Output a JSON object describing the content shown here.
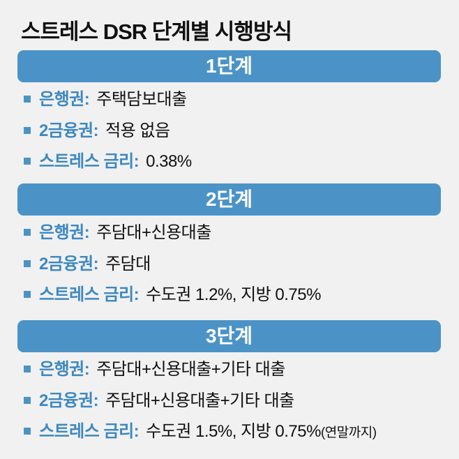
{
  "title": "스트레스 DSR 단계별 시행방식",
  "sections": [
    {
      "header": "1단계",
      "items": [
        {
          "label": "은행권:",
          "text": "주택담보대출"
        },
        {
          "label": "2금융권:",
          "text": "적용 없음"
        },
        {
          "label": "스트레스 금리:",
          "text": "0.38%"
        }
      ]
    },
    {
      "header": "2단계",
      "items": [
        {
          "label": "은행권:",
          "text": "주담대+신용대출"
        },
        {
          "label": "2금융권:",
          "text": "주담대"
        },
        {
          "label": "스트레스 금리:",
          "text": "수도권 1.2%, 지방 0.75%"
        }
      ]
    },
    {
      "header": "3단계",
      "items": [
        {
          "label": "은행권:",
          "text": "주담대+신용대출+기타 대출"
        },
        {
          "label": "2금융권:",
          "text": "주담대+신용대출+기타 대출"
        },
        {
          "label": "스트레스 금리:",
          "text": "수도권 1.5%, 지방 0.75%",
          "note": "(연말까지)"
        }
      ]
    }
  ]
}
